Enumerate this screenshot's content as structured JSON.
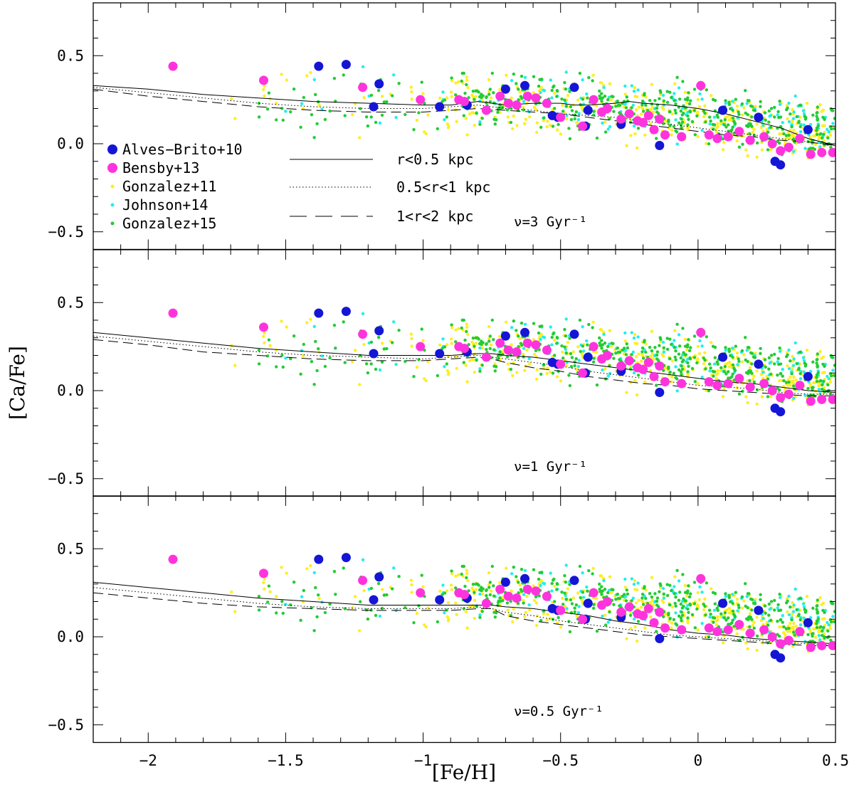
{
  "chart_data": {
    "type": "scatter",
    "xlabel": "[Fe/H]",
    "ylabel": "[Ca/Fe]",
    "xlim": [
      -2.2,
      0.5
    ],
    "ylim": [
      -0.6,
      0.8
    ],
    "x_ticks": [
      -2,
      -1.5,
      -1,
      -0.5,
      0,
      0.5
    ],
    "y_ticks": [
      -0.5,
      0.0,
      0.5
    ],
    "x_tick_labels": [
      "−2",
      "−1.5",
      "−1",
      "−0.5",
      "0",
      "0.5"
    ],
    "y_tick_labels": [
      "−0.5",
      "0.0",
      "0.5"
    ],
    "legend": {
      "placement": "lower-left of top panel",
      "datasets": [
        {
          "label": "Alves−Brito+10",
          "color": "#1515d6",
          "marker": "large-dot"
        },
        {
          "label": "Bensby+13",
          "color": "#ff33dd",
          "marker": "large-dot"
        },
        {
          "label": "Gonzalez+11",
          "color": "#ffee22",
          "marker": "small-dot"
        },
        {
          "label": "Johnson+14",
          "color": "#22eeee",
          "marker": "small-dot"
        },
        {
          "label": "Gonzalez+15",
          "color": "#22cc33",
          "marker": "small-dot"
        }
      ],
      "models": [
        {
          "label": "r<0.5 kpc",
          "style": "solid"
        },
        {
          "label": "0.5<r<1 kpc",
          "style": "dotted"
        },
        {
          "label": "1<r<2 kpc",
          "style": "dashed"
        }
      ]
    },
    "panels": [
      {
        "annotation": "ν=3 Gyr⁻¹",
        "models": [
          {
            "name": "r<0.5 kpc",
            "style": "solid",
            "x": [
              -2.2,
              -2.0,
              -1.8,
              -1.6,
              -1.4,
              -1.2,
              -1.0,
              -0.9,
              -0.8,
              -0.7,
              -0.6,
              -0.5,
              -0.45,
              -0.4,
              -0.3,
              -0.25,
              -0.2,
              -0.1,
              0.0,
              0.1,
              0.2,
              0.3,
              0.4,
              0.5
            ],
            "y": [
              0.33,
              0.31,
              0.28,
              0.26,
              0.24,
              0.23,
              0.22,
              0.22,
              0.24,
              0.22,
              0.23,
              0.23,
              0.22,
              0.22,
              0.23,
              0.24,
              0.23,
              0.22,
              0.2,
              0.17,
              0.13,
              0.09,
              0.03,
              -0.01
            ]
          },
          {
            "name": "0.5<r<1 kpc",
            "style": "dotted",
            "x": [
              -2.2,
              -2.0,
              -1.8,
              -1.6,
              -1.4,
              -1.2,
              -1.0,
              -0.9,
              -0.8,
              -0.7,
              -0.6,
              -0.5,
              -0.4,
              -0.3,
              -0.2,
              -0.1,
              0.0,
              0.1,
              0.2,
              0.3,
              0.4,
              0.5
            ],
            "y": [
              0.32,
              0.29,
              0.26,
              0.23,
              0.21,
              0.2,
              0.2,
              0.21,
              0.22,
              0.2,
              0.19,
              0.17,
              0.16,
              0.15,
              0.13,
              0.11,
              0.09,
              0.07,
              0.05,
              0.03,
              0.01,
              -0.01
            ]
          },
          {
            "name": "1<r<2 kpc",
            "style": "dashed",
            "x": [
              -2.2,
              -2.0,
              -1.8,
              -1.6,
              -1.4,
              -1.2,
              -1.0,
              -0.9,
              -0.8,
              -0.7,
              -0.6,
              -0.5,
              -0.4,
              -0.3,
              -0.2,
              -0.1,
              0.0,
              0.1,
              0.2,
              0.3,
              0.4,
              0.5
            ],
            "y": [
              0.31,
              0.27,
              0.24,
              0.21,
              0.19,
              0.18,
              0.18,
              0.19,
              0.2,
              0.19,
              0.18,
              0.17,
              0.15,
              0.13,
              0.11,
              0.09,
              0.07,
              0.05,
              0.04,
              0.02,
              0.01,
              -0.01
            ]
          }
        ]
      },
      {
        "annotation": "ν=1 Gyr⁻¹",
        "models": [
          {
            "name": "r<0.5 kpc",
            "style": "solid",
            "x": [
              -2.2,
              -2.0,
              -1.8,
              -1.6,
              -1.4,
              -1.2,
              -1.0,
              -0.9,
              -0.8,
              -0.75,
              -0.7,
              -0.6,
              -0.5,
              -0.4,
              -0.3,
              -0.2,
              -0.1,
              0.0,
              0.1,
              0.2,
              0.3,
              0.4,
              0.5
            ],
            "y": [
              0.33,
              0.3,
              0.27,
              0.24,
              0.22,
              0.2,
              0.2,
              0.2,
              0.21,
              0.21,
              0.2,
              0.19,
              0.17,
              0.15,
              0.13,
              0.11,
              0.09,
              0.07,
              0.05,
              0.04,
              0.02,
              0.0,
              -0.01
            ]
          },
          {
            "name": "0.5<r<1 kpc",
            "style": "dotted",
            "x": [
              -2.2,
              -2.0,
              -1.8,
              -1.6,
              -1.4,
              -1.2,
              -1.0,
              -0.9,
              -0.8,
              -0.75,
              -0.7,
              -0.6,
              -0.5,
              -0.4,
              -0.3,
              -0.2,
              -0.1,
              0.0,
              0.1,
              0.2,
              0.3,
              0.4,
              0.5
            ],
            "y": [
              0.31,
              0.28,
              0.25,
              0.22,
              0.2,
              0.19,
              0.18,
              0.19,
              0.2,
              0.19,
              0.18,
              0.16,
              0.14,
              0.11,
              0.09,
              0.07,
              0.05,
              0.03,
              0.02,
              0.01,
              -0.01,
              -0.02,
              -0.02
            ]
          },
          {
            "name": "1<r<2 kpc",
            "style": "dashed",
            "x": [
              -2.2,
              -2.0,
              -1.8,
              -1.6,
              -1.4,
              -1.2,
              -1.0,
              -0.9,
              -0.8,
              -0.75,
              -0.7,
              -0.6,
              -0.5,
              -0.4,
              -0.3,
              -0.2,
              -0.1,
              0.0,
              0.1,
              0.2,
              0.3,
              0.4,
              0.5
            ],
            "y": [
              0.29,
              0.26,
              0.22,
              0.2,
              0.18,
              0.17,
              0.17,
              0.18,
              0.19,
              0.18,
              0.16,
              0.13,
              0.11,
              0.08,
              0.06,
              0.04,
              0.03,
              0.01,
              0.0,
              -0.01,
              -0.02,
              -0.03,
              -0.03
            ]
          }
        ]
      },
      {
        "annotation": "ν=0.5 Gyr⁻¹",
        "models": [
          {
            "name": "r<0.5 kpc",
            "style": "solid",
            "x": [
              -2.2,
              -2.0,
              -1.8,
              -1.6,
              -1.4,
              -1.2,
              -1.0,
              -0.9,
              -0.8,
              -0.75,
              -0.7,
              -0.6,
              -0.5,
              -0.4,
              -0.3,
              -0.2,
              -0.1,
              0.0,
              0.1,
              0.2,
              0.3,
              0.4,
              0.5
            ],
            "y": [
              0.31,
              0.28,
              0.25,
              0.22,
              0.2,
              0.18,
              0.18,
              0.18,
              0.18,
              0.18,
              0.17,
              0.16,
              0.14,
              0.12,
              0.09,
              0.07,
              0.04,
              0.02,
              0.01,
              -0.01,
              -0.02,
              -0.03,
              -0.04
            ]
          },
          {
            "name": "0.5<r<1 kpc",
            "style": "dotted",
            "x": [
              -2.2,
              -2.0,
              -1.8,
              -1.6,
              -1.4,
              -1.2,
              -1.0,
              -0.9,
              -0.8,
              -0.75,
              -0.7,
              -0.6,
              -0.5,
              -0.4,
              -0.3,
              -0.2,
              -0.1,
              0.0,
              0.1,
              0.2,
              0.3,
              0.4,
              0.5
            ],
            "y": [
              0.28,
              0.25,
              0.22,
              0.19,
              0.17,
              0.16,
              0.16,
              0.16,
              0.17,
              0.16,
              0.14,
              0.12,
              0.09,
              0.07,
              0.05,
              0.03,
              0.01,
              0.0,
              -0.01,
              -0.02,
              -0.03,
              -0.04,
              -0.05
            ]
          },
          {
            "name": "1<r<2 kpc",
            "style": "dashed",
            "x": [
              -2.2,
              -2.0,
              -1.8,
              -1.6,
              -1.4,
              -1.2,
              -1.0,
              -0.9,
              -0.8,
              -0.75,
              -0.7,
              -0.6,
              -0.5,
              -0.4,
              -0.3,
              -0.2,
              -0.1,
              0.0,
              0.1,
              0.2,
              0.3,
              0.4,
              0.5
            ],
            "y": [
              0.25,
              0.22,
              0.19,
              0.17,
              0.16,
              0.15,
              0.15,
              0.15,
              0.16,
              0.16,
              0.12,
              0.09,
              0.07,
              0.05,
              0.03,
              0.01,
              0.0,
              -0.01,
              -0.02,
              -0.03,
              -0.04,
              -0.05,
              -0.05
            ]
          }
        ]
      }
    ],
    "series": [
      {
        "name": "Alves−Brito+10",
        "color": "#1515d6",
        "marker": "large-dot",
        "x": [
          -1.38,
          -1.28,
          -1.16,
          -1.18,
          -0.94,
          -0.84,
          -0.7,
          -0.63,
          -0.53,
          -0.51,
          -0.45,
          -0.41,
          -0.4,
          -0.28,
          -0.14,
          0.09,
          0.22,
          0.28,
          0.3,
          0.4
        ],
        "y": [
          0.44,
          0.45,
          0.34,
          0.21,
          0.21,
          0.22,
          0.31,
          0.33,
          0.16,
          0.15,
          0.32,
          0.1,
          0.19,
          0.11,
          -0.01,
          0.19,
          0.15,
          -0.1,
          -0.12,
          0.08
        ]
      },
      {
        "name": "Bensby+13",
        "color": "#ff33dd",
        "marker": "large-dot",
        "x": [
          -1.91,
          -1.58,
          -1.22,
          -1.01,
          -0.87,
          -0.85,
          -0.77,
          -0.72,
          -0.69,
          -0.66,
          -0.62,
          -0.59,
          -0.55,
          -0.5,
          -0.42,
          -0.38,
          -0.35,
          -0.33,
          -0.28,
          -0.25,
          -0.22,
          -0.2,
          -0.18,
          -0.16,
          -0.14,
          -0.12,
          -0.06,
          0.01,
          0.04,
          0.07,
          0.11,
          0.15,
          0.19,
          0.24,
          0.27,
          0.3,
          0.33,
          0.37,
          0.41,
          0.45,
          0.49
        ],
        "y": [
          0.44,
          0.36,
          0.32,
          0.25,
          0.25,
          0.24,
          0.19,
          0.27,
          0.23,
          0.22,
          0.27,
          0.26,
          0.23,
          0.15,
          0.1,
          0.25,
          0.18,
          0.2,
          0.14,
          0.17,
          0.13,
          0.12,
          0.16,
          0.08,
          0.14,
          0.05,
          0.04,
          0.33,
          0.05,
          0.03,
          0.04,
          0.07,
          0.02,
          0.04,
          0.0,
          -0.04,
          -0.02,
          0.03,
          -0.06,
          -0.05,
          -0.05
        ]
      }
    ],
    "scatter_clouds": [
      {
        "name": "Gonzalez+11",
        "color": "#ffee22",
        "approx_points": 400,
        "x_range": [
          -1.7,
          0.5
        ],
        "y_range": [
          -0.25,
          0.45
        ]
      },
      {
        "name": "Johnson+14",
        "color": "#22eeee",
        "approx_points": 150,
        "x_range": [
          -1.75,
          0.5
        ],
        "y_range": [
          -0.25,
          0.55
        ]
      },
      {
        "name": "Gonzalez+15",
        "color": "#22cc33",
        "approx_points": 450,
        "x_range": [
          -1.6,
          0.5
        ],
        "y_range": [
          -0.15,
          0.4
        ]
      }
    ]
  }
}
